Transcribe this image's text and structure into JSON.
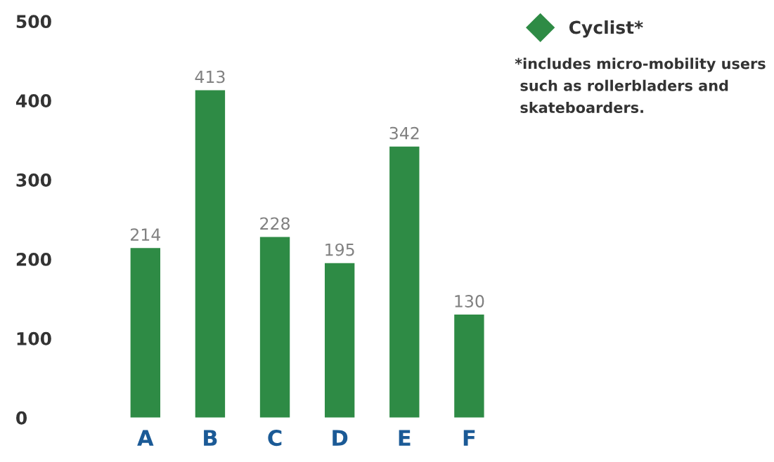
{
  "chart_data": {
    "type": "bar",
    "categories": [
      "A",
      "B",
      "C",
      "D",
      "E",
      "F"
    ],
    "series": [
      {
        "name": "Cyclist*",
        "color": "#2e8b45",
        "values": [
          214,
          413,
          228,
          195,
          342,
          130
        ]
      }
    ],
    "ylim": [
      0,
      500
    ],
    "yticks": [
      0,
      100,
      200,
      300,
      400,
      500
    ],
    "grid": false,
    "data_labels": true,
    "legend": "top right",
    "marker": "diamond",
    "annotations": [
      "*includes micro-mobility users\n such as rollerbladers and\n skateboarders."
    ]
  }
}
